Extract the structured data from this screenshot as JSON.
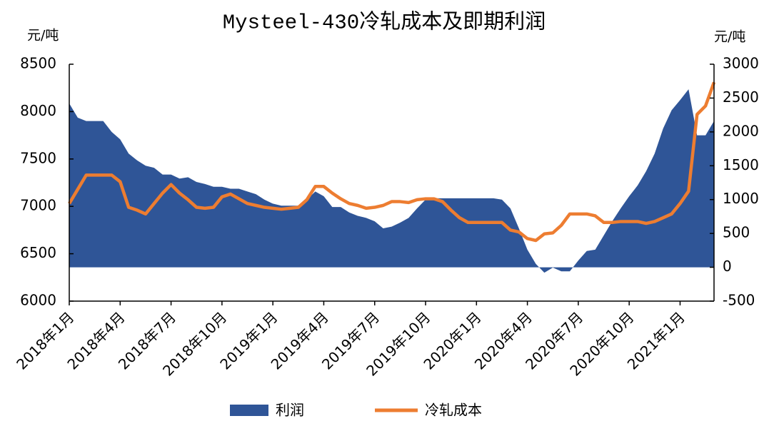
{
  "chart_data": {
    "type": "combo",
    "title": "Mysteel-430冷轧成本及即期利润",
    "y_label": "元/吨",
    "y2_label": "元/吨",
    "categories": [
      "2018年1月",
      null,
      null,
      null,
      null,
      null,
      "2018年4月",
      null,
      null,
      null,
      null,
      null,
      "2018年7月",
      null,
      null,
      null,
      null,
      null,
      "2018年10月",
      null,
      null,
      null,
      null,
      null,
      "2019年1月",
      null,
      null,
      null,
      null,
      null,
      "2019年4月",
      null,
      null,
      null,
      null,
      null,
      "2019年7月",
      null,
      null,
      null,
      null,
      null,
      "2019年10月",
      null,
      null,
      null,
      null,
      null,
      "2020年1月",
      null,
      null,
      null,
      null,
      null,
      "2020年4月",
      null,
      null,
      null,
      null,
      null,
      "2020年7月",
      null,
      null,
      null,
      null,
      null,
      "2020年10月",
      null,
      null,
      null,
      null,
      null,
      "2021年1月",
      null,
      null,
      null,
      null
    ],
    "series": [
      {
        "name": "利润",
        "type": "area",
        "axis": "y2",
        "color": "#2f5597",
        "values": [
          2420,
          2210,
          2160,
          2160,
          2160,
          2000,
          1890,
          1680,
          1580,
          1500,
          1470,
          1370,
          1370,
          1310,
          1330,
          1260,
          1230,
          1190,
          1190,
          1160,
          1160,
          1120,
          1080,
          1000,
          940,
          910,
          910,
          910,
          1000,
          1120,
          1050,
          890,
          890,
          810,
          760,
          730,
          680,
          575,
          600,
          660,
          730,
          870,
          1000,
          1020,
          1020,
          1020,
          1020,
          1020,
          1020,
          1020,
          1020,
          1000,
          870,
          575,
          260,
          50,
          -80,
          -5,
          -60,
          -60,
          100,
          240,
          260,
          470,
          680,
          870,
          1050,
          1210,
          1420,
          1680,
          2050,
          2320,
          2470,
          2630,
          1950,
          1950,
          2160
        ]
      },
      {
        "name": "冷轧成本",
        "type": "line",
        "axis": "y",
        "color": "#ed7d31",
        "values": [
          7030,
          7180,
          7330,
          7330,
          7330,
          7330,
          7260,
          6990,
          6960,
          6920,
          7030,
          7140,
          7230,
          7140,
          7070,
          6990,
          6980,
          6990,
          7100,
          7130,
          7080,
          7030,
          7010,
          6990,
          6980,
          6970,
          6980,
          6990,
          7070,
          7210,
          7210,
          7140,
          7080,
          7030,
          7010,
          6980,
          6990,
          7010,
          7050,
          7050,
          7040,
          7070,
          7080,
          7080,
          7050,
          6960,
          6880,
          6830,
          6830,
          6830,
          6830,
          6830,
          6750,
          6730,
          6660,
          6640,
          6710,
          6720,
          6800,
          6920,
          6920,
          6920,
          6900,
          6830,
          6830,
          6840,
          6840,
          6840,
          6820,
          6840,
          6880,
          6920,
          7030,
          7160,
          7970,
          8060,
          8310
        ]
      }
    ],
    "ylim": [
      6000,
      8500
    ],
    "yticks": [
      6000,
      6500,
      7000,
      7500,
      8000,
      8500
    ],
    "y2lim": [
      -500,
      3000
    ],
    "y2ticks": [
      -500,
      0,
      500,
      1000,
      1500,
      2000,
      2500,
      3000
    ],
    "legend": "bottom"
  }
}
